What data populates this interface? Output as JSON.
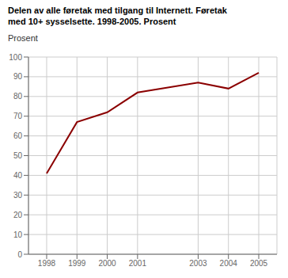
{
  "chart_data": {
    "type": "line",
    "title": "Delen av alle føretak med tilgang til Internett. Føretak\nmed 10+ sysselsette. 1998-2005. Prosent",
    "y_label": "Prosent",
    "x": [
      1998,
      1999,
      2000,
      2001,
      2003,
      2004,
      2005
    ],
    "values": [
      41,
      67,
      72,
      82,
      87,
      84,
      92
    ],
    "color": "#8B0000",
    "xlim": [
      1997.4,
      2005.6
    ],
    "xticks": [
      1998,
      1999,
      2000,
      2001,
      2003,
      2004,
      2005
    ],
    "ylim": [
      0,
      100
    ],
    "yticks": [
      0,
      10,
      20,
      30,
      40,
      50,
      60,
      70,
      80,
      90,
      100
    ],
    "grid": true
  }
}
